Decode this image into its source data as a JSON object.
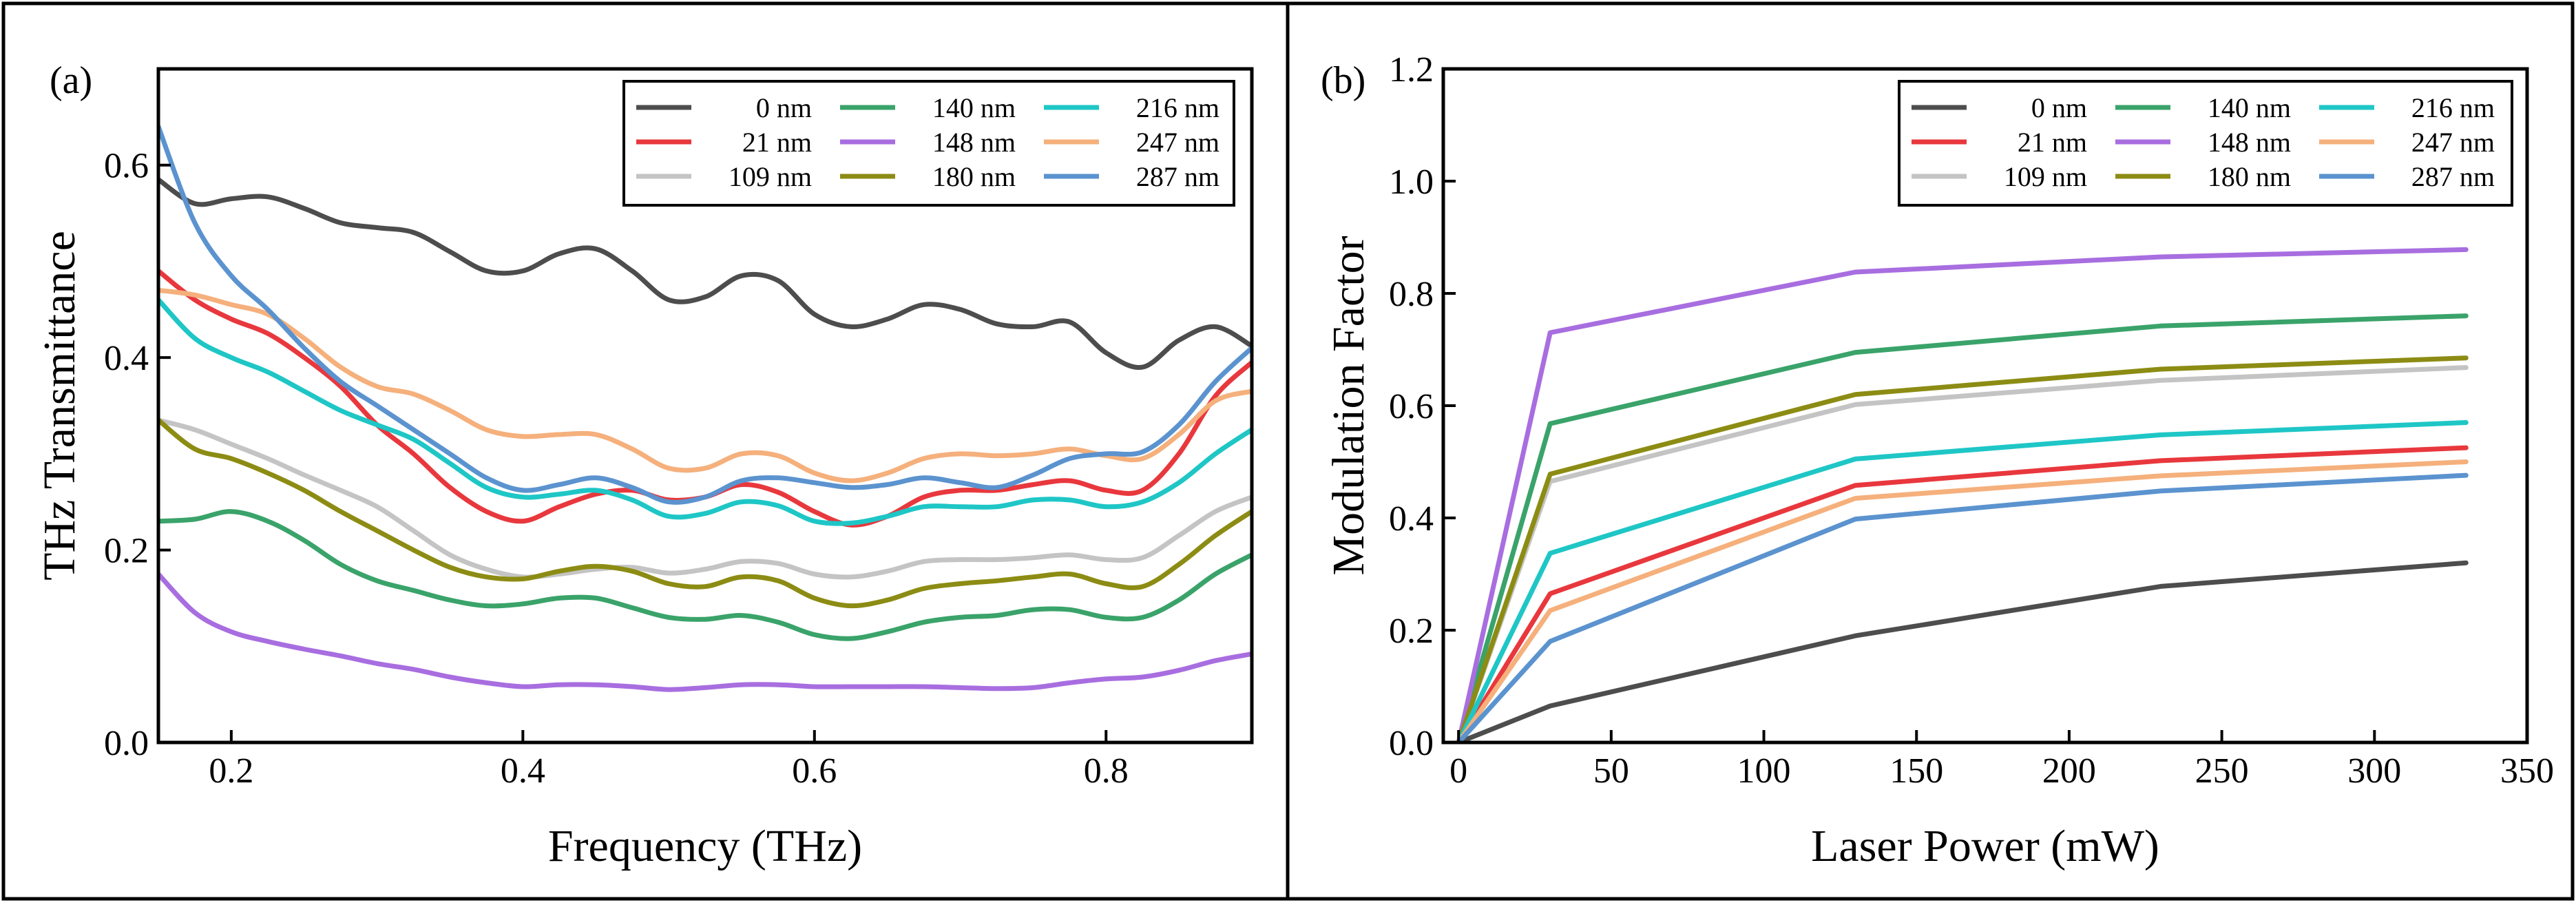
{
  "colors": {
    "0 nm": "#4d4d4d",
    "21 nm": "#e8383d",
    "109 nm": "#c4c4c4",
    "140 nm": "#3aa36a",
    "148 nm": "#a86ee0",
    "180 nm": "#8c8c14",
    "216 nm": "#1fc6c6",
    "247 nm": "#f5b07c",
    "287 nm": "#5b93cf"
  },
  "chart_data": [
    {
      "type": "line",
      "panel_label": "(a)",
      "xlabel": "Frequency (THz)",
      "ylabel": "THz Transmittance",
      "xlim": [
        0.15,
        0.9
      ],
      "ylim": [
        0.0,
        0.7
      ],
      "xticks": [
        "0.2",
        "0.4",
        "0.6",
        "0.8"
      ],
      "xtick_values": [
        0.2,
        0.4,
        0.6,
        0.8
      ],
      "yticks": [
        "0.0",
        "0.2",
        "0.4",
        "0.6"
      ],
      "ytick_values": [
        0.0,
        0.2,
        0.4,
        0.6
      ],
      "legend_position": "top-right",
      "legend": [
        "0 nm",
        "140 nm",
        "216 nm",
        "21 nm",
        "148 nm",
        "247 nm",
        "109 nm",
        "180 nm",
        "287 nm"
      ],
      "x": [
        0.15,
        0.175,
        0.2,
        0.225,
        0.25,
        0.275,
        0.3,
        0.325,
        0.35,
        0.375,
        0.4,
        0.425,
        0.45,
        0.475,
        0.5,
        0.525,
        0.55,
        0.575,
        0.6,
        0.625,
        0.65,
        0.675,
        0.7,
        0.725,
        0.75,
        0.775,
        0.8,
        0.825,
        0.85,
        0.875,
        0.9
      ],
      "series": [
        {
          "name": "0 nm",
          "values": [
            0.585,
            0.56,
            0.565,
            0.567,
            0.555,
            0.54,
            0.535,
            0.53,
            0.51,
            0.49,
            0.49,
            0.508,
            0.513,
            0.49,
            0.46,
            0.463,
            0.485,
            0.48,
            0.445,
            0.432,
            0.44,
            0.455,
            0.45,
            0.435,
            0.432,
            0.437,
            0.405,
            0.39,
            0.418,
            0.432,
            0.412
          ]
        },
        {
          "name": "21 nm",
          "values": [
            0.49,
            0.46,
            0.44,
            0.425,
            0.4,
            0.37,
            0.33,
            0.3,
            0.265,
            0.24,
            0.23,
            0.245,
            0.258,
            0.262,
            0.252,
            0.255,
            0.268,
            0.26,
            0.24,
            0.226,
            0.235,
            0.255,
            0.262,
            0.262,
            0.268,
            0.272,
            0.262,
            0.262,
            0.3,
            0.36,
            0.395
          ]
        },
        {
          "name": "109 nm",
          "values": [
            0.335,
            0.325,
            0.31,
            0.295,
            0.278,
            0.262,
            0.245,
            0.22,
            0.195,
            0.18,
            0.172,
            0.175,
            0.18,
            0.182,
            0.176,
            0.18,
            0.188,
            0.186,
            0.175,
            0.172,
            0.178,
            0.188,
            0.19,
            0.19,
            0.192,
            0.195,
            0.19,
            0.192,
            0.215,
            0.24,
            0.255
          ]
        },
        {
          "name": "140 nm",
          "values": [
            0.23,
            0.232,
            0.24,
            0.23,
            0.21,
            0.185,
            0.168,
            0.158,
            0.148,
            0.142,
            0.144,
            0.15,
            0.15,
            0.14,
            0.13,
            0.128,
            0.132,
            0.125,
            0.112,
            0.108,
            0.115,
            0.125,
            0.13,
            0.132,
            0.138,
            0.138,
            0.13,
            0.13,
            0.148,
            0.175,
            0.195
          ]
        },
        {
          "name": "148 nm",
          "values": [
            0.175,
            0.135,
            0.115,
            0.105,
            0.097,
            0.09,
            0.082,
            0.076,
            0.068,
            0.062,
            0.058,
            0.06,
            0.06,
            0.058,
            0.055,
            0.057,
            0.06,
            0.06,
            0.058,
            0.058,
            0.058,
            0.058,
            0.057,
            0.056,
            0.057,
            0.062,
            0.066,
            0.068,
            0.075,
            0.085,
            0.092
          ]
        },
        {
          "name": "180 nm",
          "values": [
            0.335,
            0.305,
            0.295,
            0.28,
            0.262,
            0.24,
            0.22,
            0.2,
            0.182,
            0.172,
            0.17,
            0.178,
            0.183,
            0.178,
            0.165,
            0.162,
            0.172,
            0.168,
            0.15,
            0.142,
            0.148,
            0.16,
            0.165,
            0.168,
            0.172,
            0.175,
            0.165,
            0.162,
            0.185,
            0.215,
            0.24
          ]
        },
        {
          "name": "216 nm",
          "values": [
            0.46,
            0.42,
            0.4,
            0.385,
            0.365,
            0.345,
            0.33,
            0.315,
            0.29,
            0.265,
            0.255,
            0.258,
            0.262,
            0.252,
            0.235,
            0.238,
            0.25,
            0.246,
            0.23,
            0.228,
            0.235,
            0.245,
            0.245,
            0.245,
            0.252,
            0.252,
            0.245,
            0.25,
            0.27,
            0.3,
            0.325
          ]
        },
        {
          "name": "247 nm",
          "values": [
            0.47,
            0.465,
            0.455,
            0.445,
            0.42,
            0.39,
            0.37,
            0.362,
            0.345,
            0.325,
            0.318,
            0.32,
            0.32,
            0.305,
            0.285,
            0.285,
            0.3,
            0.298,
            0.28,
            0.272,
            0.28,
            0.295,
            0.3,
            0.298,
            0.3,
            0.305,
            0.298,
            0.295,
            0.32,
            0.355,
            0.365
          ]
        },
        {
          "name": "287 nm",
          "values": [
            0.64,
            0.54,
            0.485,
            0.45,
            0.41,
            0.375,
            0.35,
            0.325,
            0.3,
            0.275,
            0.262,
            0.268,
            0.275,
            0.265,
            0.25,
            0.255,
            0.272,
            0.275,
            0.27,
            0.265,
            0.268,
            0.275,
            0.27,
            0.265,
            0.278,
            0.295,
            0.3,
            0.302,
            0.33,
            0.375,
            0.41
          ]
        }
      ]
    },
    {
      "type": "line",
      "panel_label": "(b)",
      "xlabel": "Laser Power (mW)",
      "ylabel": "Modulation Factor",
      "xlim": [
        -5,
        350
      ],
      "ylim": [
        0.0,
        1.2
      ],
      "xticks": [
        "0",
        "50",
        "100",
        "150",
        "200",
        "250",
        "300",
        "350"
      ],
      "xtick_values": [
        0,
        50,
        100,
        150,
        200,
        250,
        300,
        350
      ],
      "yticks": [
        "0.0",
        "0.2",
        "0.4",
        "0.6",
        "0.8",
        "1.0",
        "1.2"
      ],
      "ytick_values": [
        0.0,
        0.2,
        0.4,
        0.6,
        0.8,
        1.0,
        1.2
      ],
      "legend_position": "top-right",
      "legend": [
        "0 nm",
        "140 nm",
        "216 nm",
        "21 nm",
        "148 nm",
        "247 nm",
        "109 nm",
        "180 nm",
        "287 nm"
      ],
      "x": [
        0,
        30,
        130,
        230,
        330
      ],
      "series": [
        {
          "name": "0 nm",
          "values": [
            0.0,
            0.065,
            0.19,
            0.278,
            0.32
          ]
        },
        {
          "name": "21 nm",
          "values": [
            0.0,
            0.265,
            0.458,
            0.502,
            0.525
          ]
        },
        {
          "name": "109 nm",
          "values": [
            0.0,
            0.465,
            0.602,
            0.645,
            0.668
          ]
        },
        {
          "name": "140 nm",
          "values": [
            0.0,
            0.568,
            0.695,
            0.742,
            0.76
          ]
        },
        {
          "name": "148 nm",
          "values": [
            0.0,
            0.73,
            0.838,
            0.865,
            0.878
          ]
        },
        {
          "name": "180 nm",
          "values": [
            0.0,
            0.478,
            0.62,
            0.665,
            0.685
          ]
        },
        {
          "name": "216 nm",
          "values": [
            0.0,
            0.337,
            0.505,
            0.548,
            0.57
          ]
        },
        {
          "name": "247 nm",
          "values": [
            0.0,
            0.235,
            0.435,
            0.475,
            0.5
          ]
        },
        {
          "name": "287 nm",
          "values": [
            0.0,
            0.18,
            0.398,
            0.448,
            0.476
          ]
        }
      ]
    }
  ]
}
